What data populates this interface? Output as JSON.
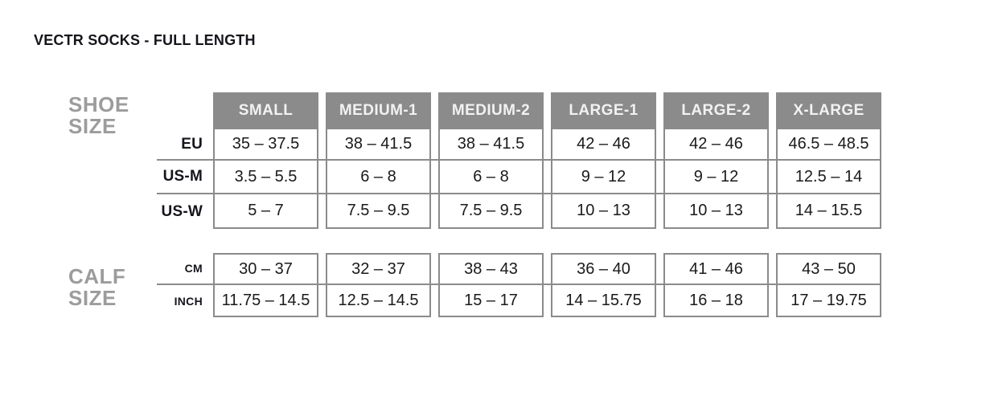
{
  "header": {
    "title": "VECTR SOCKS - FULL LENGTH"
  },
  "sections": {
    "shoe": {
      "line1": "SHOE",
      "line2": "SIZE"
    },
    "calf": {
      "line1": "CALF",
      "line2": "SIZE"
    }
  },
  "colors": {
    "header_bg": "#8b8b8b",
    "table_border": "#8b8b8b",
    "section_label": "#9c9c9c",
    "value_text": "#1a1a1a",
    "title_text": "#15151d",
    "header_text": "#f2f2f2"
  },
  "chart_data": [
    {
      "type": "table",
      "title": "SHOE SIZE",
      "columns": [
        "SMALL",
        "MEDIUM-1",
        "MEDIUM-2",
        "LARGE-1",
        "LARGE-2",
        "X-LARGE"
      ],
      "rows": [
        {
          "label": "EU",
          "values": [
            "35 – 37.5",
            "38 – 41.5",
            "38 – 41.5",
            "42 – 46",
            "42 – 46",
            "46.5 – 48.5"
          ]
        },
        {
          "label": "US-M",
          "values": [
            "3.5 – 5.5",
            "6 – 8",
            "6 – 8",
            "9 – 12",
            "9 – 12",
            "12.5 – 14"
          ]
        },
        {
          "label": "US-W",
          "values": [
            "5 – 7",
            "7.5 – 9.5",
            "7.5 – 9.5",
            "10 – 13",
            "10 – 13",
            "14 – 15.5"
          ]
        }
      ]
    },
    {
      "type": "table",
      "title": "CALF SIZE",
      "columns": [
        "SMALL",
        "MEDIUM-1",
        "MEDIUM-2",
        "LARGE-1",
        "LARGE-2",
        "X-LARGE"
      ],
      "rows": [
        {
          "label": "CM",
          "values": [
            "30 – 37",
            "32 – 37",
            "38 – 43",
            "36 – 40",
            "41 – 46",
            "43 – 50"
          ]
        },
        {
          "label": "INCH",
          "values": [
            "11.75 – 14.5",
            "12.5 – 14.5",
            "15 – 17",
            "14 – 15.75",
            "16 – 18",
            "17 – 19.75"
          ]
        }
      ]
    }
  ]
}
